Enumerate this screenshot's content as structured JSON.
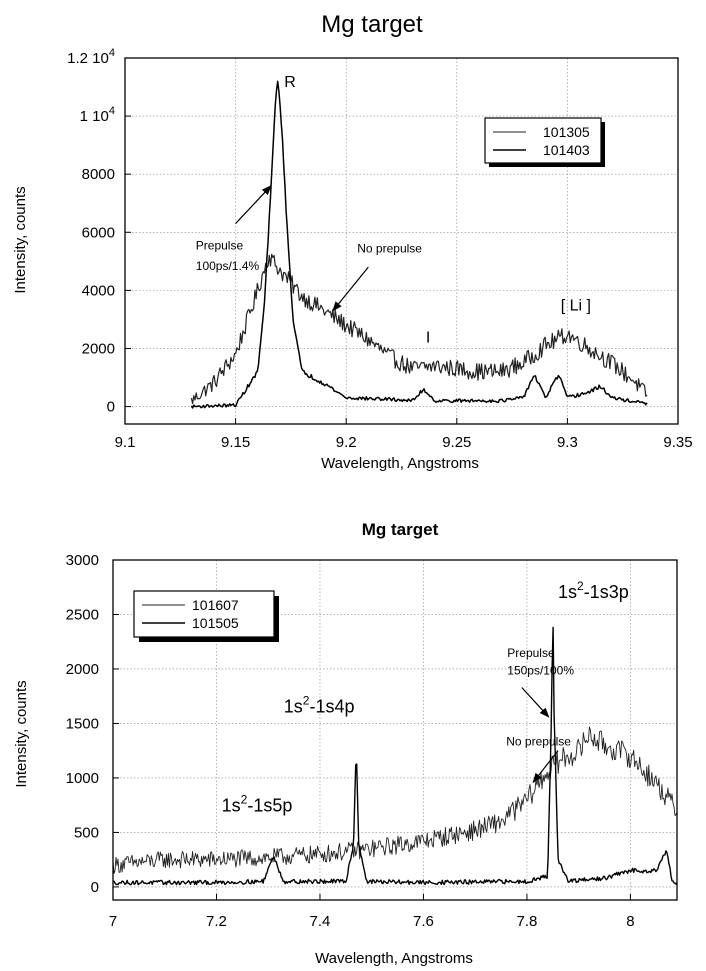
{
  "chart_data": [
    {
      "type": "line",
      "title": "Mg target",
      "xlabel": "Wavelength, Angstroms",
      "ylabel": "Intensity, counts",
      "xlim": [
        9.1,
        9.35
      ],
      "ylim": [
        -600,
        12000
      ],
      "grid": true,
      "legend_position": "top-right",
      "x_ticks": [
        9.1,
        9.15,
        9.2,
        9.25,
        9.3,
        9.35
      ],
      "x_tick_labels": [
        "9.1",
        "9.15",
        "9.2",
        "9.25",
        "9.3",
        "9.35"
      ],
      "y_ticks": [
        {
          "value": 0,
          "label": "0"
        },
        {
          "value": 2000,
          "label": "2000"
        },
        {
          "value": 4000,
          "label": "4000"
        },
        {
          "value": 6000,
          "label": "6000"
        },
        {
          "value": 8000,
          "label": "8000"
        },
        {
          "value": 10000,
          "label": "1 10",
          "exp": "4"
        },
        {
          "value": 12000,
          "label": "1.2 10",
          "exp": "4"
        }
      ],
      "series": [
        {
          "name": "101305",
          "noise": 300,
          "x": [
            9.13,
            9.14,
            9.15,
            9.16,
            9.165,
            9.17,
            9.18,
            9.19,
            9.2,
            9.21,
            9.22,
            9.23,
            9.24,
            9.25,
            9.26,
            9.27,
            9.28,
            9.29,
            9.3,
            9.31,
            9.32,
            9.33,
            9.336
          ],
          "values": [
            200,
            800,
            1800,
            4000,
            5200,
            4700,
            3800,
            3300,
            2800,
            2300,
            1700,
            1300,
            1400,
            1300,
            1200,
            1200,
            1500,
            2100,
            2500,
            2000,
            1500,
            900,
            400
          ]
        },
        {
          "name": "101403",
          "noise": 80,
          "x": [
            9.13,
            9.15,
            9.16,
            9.163,
            9.166,
            9.168,
            9.169,
            9.171,
            9.173,
            9.176,
            9.18,
            9.19,
            9.2,
            9.22,
            9.23,
            9.235,
            9.24,
            9.27,
            9.28,
            9.285,
            9.29,
            9.296,
            9.3,
            9.31,
            9.315,
            9.32,
            9.336
          ],
          "values": [
            0,
            50,
            1200,
            3500,
            7500,
            10500,
            11300,
            9500,
            6500,
            3000,
            1200,
            800,
            300,
            250,
            200,
            600,
            200,
            200,
            300,
            1100,
            300,
            1100,
            300,
            500,
            700,
            300,
            100
          ]
        }
      ],
      "annotations": [
        {
          "text": "R",
          "x": 9.172,
          "y": 11000
        },
        {
          "text": "Prepulse",
          "x": 9.132,
          "y": 5400
        },
        {
          "text": "100ps/1.4%",
          "x": 9.132,
          "y": 4700
        },
        {
          "text": "No prepulse",
          "x": 9.205,
          "y": 5300
        },
        {
          "text": "I",
          "x": 9.236,
          "y": 2200
        },
        {
          "text": "[ Li ]",
          "x": 9.297,
          "y": 3300
        }
      ],
      "arrows": [
        {
          "from": [
            9.15,
            6300
          ],
          "to": [
            9.166,
            7600
          ]
        },
        {
          "from": [
            9.21,
            4800
          ],
          "to": [
            9.194,
            3300
          ]
        }
      ]
    },
    {
      "type": "line",
      "title": "Mg target",
      "xlabel": "Wavelength, Angstroms",
      "ylabel": "Intensity, counts",
      "xlim": [
        7.0,
        8.09
      ],
      "ylim": [
        -120,
        3000
      ],
      "grid": true,
      "legend_position": "top-left",
      "x_ticks": [
        7.0,
        7.2,
        7.4,
        7.6,
        7.8,
        8.0
      ],
      "x_tick_labels": [
        "7",
        "7.2",
        "7.4",
        "7.6",
        "7.8",
        "8"
      ],
      "y_ticks": [
        {
          "value": 0,
          "label": "0"
        },
        {
          "value": 500,
          "label": "500"
        },
        {
          "value": 1000,
          "label": "1000"
        },
        {
          "value": 1500,
          "label": "1500"
        },
        {
          "value": 2000,
          "label": "2000"
        },
        {
          "value": 2500,
          "label": "2500"
        },
        {
          "value": 3000,
          "label": "3000"
        }
      ],
      "series": [
        {
          "name": "101607",
          "noise": 110,
          "x": [
            7.0,
            7.1,
            7.2,
            7.3,
            7.4,
            7.5,
            7.6,
            7.7,
            7.75,
            7.8,
            7.83,
            7.86,
            7.88,
            7.9,
            7.92,
            7.95,
            8.0,
            8.05,
            8.09
          ],
          "values": [
            200,
            250,
            250,
            270,
            300,
            350,
            420,
            520,
            600,
            800,
            1000,
            1150,
            1200,
            1250,
            1400,
            1300,
            1200,
            950,
            700
          ]
        },
        {
          "name": "101505",
          "noise": 30,
          "x": [
            7.0,
            7.2,
            7.29,
            7.31,
            7.33,
            7.45,
            7.465,
            7.47,
            7.475,
            7.49,
            7.6,
            7.8,
            7.84,
            7.848,
            7.85,
            7.852,
            7.86,
            7.88,
            7.95,
            8.0,
            8.05,
            8.07,
            8.08,
            8.09
          ],
          "values": [
            40,
            40,
            50,
            280,
            50,
            50,
            400,
            1300,
            400,
            50,
            40,
            50,
            100,
            1700,
            2700,
            1700,
            250,
            50,
            80,
            150,
            150,
            350,
            50,
            30
          ]
        }
      ],
      "annotations": [
        {
          "text": "1s",
          "sup": "2",
          "rest": "-1s3p",
          "x": 7.86,
          "y": 2650
        },
        {
          "text": "1s",
          "sup": "2",
          "rest": "-1s4p",
          "x": 7.33,
          "y": 1600
        },
        {
          "text": "1s",
          "sup": "2",
          "rest": "-1s5p",
          "x": 7.21,
          "y": 690
        },
        {
          "text": "Prepulse",
          "x": 7.762,
          "y": 2110
        },
        {
          "text": "150ps/100%",
          "x": 7.762,
          "y": 1950
        },
        {
          "text": "No prepulse",
          "x": 7.76,
          "y": 1300
        }
      ],
      "arrows": [
        {
          "from": [
            7.79,
            1830
          ],
          "to": [
            7.842,
            1560
          ]
        },
        {
          "from": [
            7.86,
            1250
          ],
          "to": [
            7.812,
            960
          ]
        }
      ]
    }
  ]
}
